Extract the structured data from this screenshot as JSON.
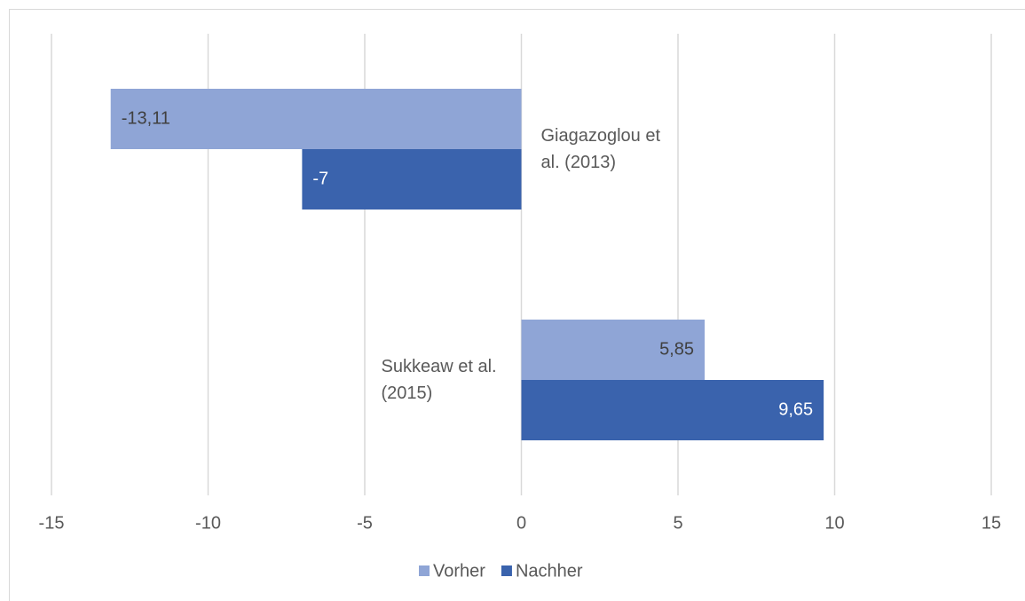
{
  "chart_data": {
    "type": "hbar",
    "categories": [
      "Giagazoglou et al. (2013)",
      "Sukkeaw et al. (2015)"
    ],
    "series": [
      {
        "name": "Vorher",
        "color": "#8fa5d6",
        "values": [
          -13.11,
          5.85
        ],
        "value_labels": [
          "-13,11",
          "5,85"
        ],
        "label_color": "#404040"
      },
      {
        "name": "Nachher",
        "color": "#3a63ad",
        "values": [
          -7,
          9.65
        ],
        "value_labels": [
          "-7",
          "9,65"
        ],
        "label_color": "#ffffff"
      }
    ],
    "xlim": [
      -15,
      15
    ],
    "xticks": [
      -15,
      -10,
      -5,
      0,
      5,
      10,
      15
    ],
    "grid": true,
    "legend": "bottom"
  }
}
